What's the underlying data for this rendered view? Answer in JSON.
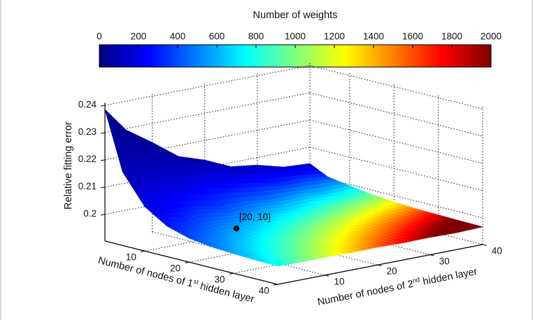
{
  "labels": {
    "colorbar_title": "Number of weights",
    "z_axis": "Relative fitting error",
    "x_prefix": "Number of nodes of 1",
    "x_sup": "st",
    "x_suffix": " hidden layer",
    "y_prefix": "Number of nodes of 2",
    "y_sup": "nd",
    "y_suffix": " hidden layer"
  },
  "chart_data": {
    "type": "surface",
    "title": "",
    "x_label": "Number of nodes of 1st hidden layer",
    "y_label": "Number of nodes of 2nd hidden layer",
    "z_label": "Relative fitting error",
    "colorbar": {
      "title": "Number of weights",
      "ticks": [
        0,
        200,
        400,
        600,
        800,
        1000,
        1200,
        1400,
        1600,
        1800,
        2000
      ],
      "min": 0,
      "max": 2000,
      "colormap": "jet",
      "location": "top"
    },
    "x_ticks": [
      10,
      20,
      30,
      40
    ],
    "y_ticks": [
      10,
      20,
      30,
      40
    ],
    "z_ticks": [
      0.2,
      0.21,
      0.22,
      0.23,
      0.24
    ],
    "z_tick_labels": [
      "0.2",
      "0.21",
      "0.22",
      "0.23",
      "0.24"
    ],
    "x_range": [
      1,
      40
    ],
    "y_range": [
      1,
      40
    ],
    "z_range": [
      0.1902,
      0.241
    ],
    "grid": {
      "x": [
        1,
        5,
        10,
        15,
        20,
        25,
        30,
        35,
        40
      ],
      "y": [
        1,
        5,
        10,
        15,
        20,
        25,
        30,
        35,
        40
      ],
      "z": [
        [
          0.2385,
          0.2295,
          0.223,
          0.216,
          0.2128,
          0.2085,
          0.2072,
          0.2046,
          0.204
        ],
        [
          0.2172,
          0.2145,
          0.2095,
          0.2078,
          0.2055,
          0.204,
          0.2022,
          0.202,
          0.2008
        ],
        [
          0.2065,
          0.2038,
          0.2032,
          0.2012,
          0.2012,
          0.2,
          0.2001,
          0.1992,
          0.1995
        ],
        [
          0.2014,
          0.1999,
          0.2,
          0.1989,
          0.1991,
          0.1984,
          0.1987,
          0.1981,
          0.1984
        ],
        [
          0.199,
          0.1982,
          0.1984,
          0.1978,
          0.198,
          0.1976,
          0.1978,
          0.1975,
          0.1977
        ],
        [
          0.1979,
          0.1975,
          0.1976,
          0.1973,
          0.1974,
          0.1972,
          0.1973,
          0.1971,
          0.1972
        ],
        [
          0.1974,
          0.1971,
          0.1972,
          0.197,
          0.1971,
          0.1969,
          0.197,
          0.1968,
          0.197
        ],
        [
          0.1971,
          0.1969,
          0.197,
          0.1968,
          0.1969,
          0.1967,
          0.1968,
          0.1966,
          0.1968
        ],
        [
          0.1969,
          0.1967,
          0.1968,
          0.1966,
          0.1967,
          0.1965,
          0.1966,
          0.1964,
          0.1967
        ]
      ],
      "weights": [
        [
          21,
          33,
          48,
          63,
          78,
          93,
          108,
          123,
          138
        ],
        [
          97,
          125,
          160,
          195,
          230,
          265,
          300,
          335,
          370
        ],
        [
          192,
          240,
          300,
          360,
          420,
          480,
          540,
          600,
          660
        ],
        [
          287,
          355,
          440,
          525,
          610,
          695,
          780,
          865,
          950
        ],
        [
          382,
          470,
          580,
          690,
          800,
          910,
          1020,
          1130,
          1240
        ],
        [
          477,
          585,
          720,
          855,
          990,
          1125,
          1260,
          1395,
          1530
        ],
        [
          572,
          700,
          860,
          1020,
          1180,
          1340,
          1500,
          1660,
          1820
        ],
        [
          667,
          815,
          1000,
          1185,
          1370,
          1555,
          1740,
          1925,
          2110
        ],
        [
          762,
          930,
          1140,
          1350,
          1560,
          1770,
          1980,
          2190,
          2400
        ]
      ]
    },
    "annotation": {
      "label": "[20, 10]",
      "x": 20,
      "y": 10
    },
    "marker_color": "#000000"
  }
}
